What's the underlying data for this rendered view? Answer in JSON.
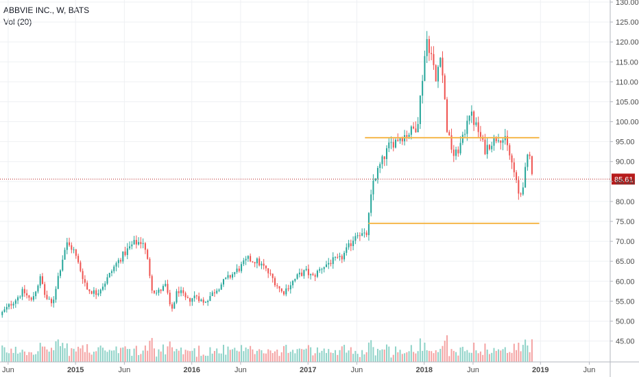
{
  "legend": {
    "symbol": "ABBVIE INC., W, BATS",
    "volume": "Vol (20)"
  },
  "colors": {
    "up": "#26a69a",
    "down": "#ef5350",
    "vol_up": "#8fd3c8",
    "vol_down": "#f4a3a3",
    "level_line": "#f5b74a",
    "last_price": "#b71c1c",
    "grid": "#eef0f3"
  },
  "chart_data": {
    "type": "candlestick",
    "title": "ABBVIE INC., W, BATS",
    "interval": "weekly",
    "exchange": "BATS",
    "last_price": "85.61",
    "y_ticks": [
      "45.00",
      "50.00",
      "55.00",
      "60.00",
      "65.00",
      "70.00",
      "75.00",
      "80.00",
      "85.00",
      "90.00",
      "95.00",
      "100.00",
      "105.00",
      "110.00",
      "115.00",
      "120.00",
      "125.00",
      "130.00"
    ],
    "ylim": [
      42,
      130
    ],
    "x_ticks": [
      {
        "label": "Jun",
        "bold": false
      },
      {
        "label": "2015",
        "bold": true
      },
      {
        "label": "Jun",
        "bold": false
      },
      {
        "label": "2016",
        "bold": true
      },
      {
        "label": "Jun",
        "bold": false
      },
      {
        "label": "2017",
        "bold": true
      },
      {
        "label": "Jun",
        "bold": false
      },
      {
        "label": "2018",
        "bold": true
      },
      {
        "label": "Jun",
        "bold": false
      },
      {
        "label": "2019",
        "bold": true
      },
      {
        "label": "Jun",
        "bold": false
      }
    ],
    "x_range_years": [
      2014.35,
      2019.6
    ],
    "x_tick_years": [
      2014.42,
      2015.0,
      2015.42,
      2016.0,
      2016.42,
      2017.0,
      2017.42,
      2018.0,
      2018.42,
      2019.0,
      2019.42
    ],
    "price_path": [
      [
        2014.35,
        51.5
      ],
      [
        2014.55,
        57.5
      ],
      [
        2014.62,
        55.0
      ],
      [
        2014.7,
        61.0
      ],
      [
        2014.74,
        56.0
      ],
      [
        2014.8,
        54.0
      ],
      [
        2014.84,
        60.0
      ],
      [
        2014.92,
        69.5
      ],
      [
        2014.98,
        68.0
      ],
      [
        2015.04,
        63.0
      ],
      [
        2015.1,
        58.0
      ],
      [
        2015.18,
        57.0
      ],
      [
        2015.26,
        60.0
      ],
      [
        2015.34,
        64.0
      ],
      [
        2015.42,
        67.0
      ],
      [
        2015.5,
        69.5
      ],
      [
        2015.58,
        70.0
      ],
      [
        2015.62,
        65.0
      ],
      [
        2015.66,
        58.0
      ],
      [
        2015.7,
        57.0
      ],
      [
        2015.78,
        59.0
      ],
      [
        2015.82,
        52.0
      ],
      [
        2015.88,
        58.0
      ],
      [
        2015.96,
        55.0
      ],
      [
        2016.04,
        56.5
      ],
      [
        2016.1,
        54.5
      ],
      [
        2016.18,
        57.0
      ],
      [
        2016.26,
        59.5
      ],
      [
        2016.34,
        61.5
      ],
      [
        2016.42,
        63.5
      ],
      [
        2016.48,
        65.5
      ],
      [
        2016.56,
        65.0
      ],
      [
        2016.62,
        63.5
      ],
      [
        2016.7,
        60.5
      ],
      [
        2016.78,
        57.0
      ],
      [
        2016.84,
        59.0
      ],
      [
        2016.92,
        61.5
      ],
      [
        2016.98,
        62.5
      ],
      [
        2017.04,
        61.0
      ],
      [
        2017.12,
        63.5
      ],
      [
        2017.2,
        65.0
      ],
      [
        2017.28,
        65.5
      ],
      [
        2017.36,
        69.0
      ],
      [
        2017.42,
        72.5
      ],
      [
        2017.5,
        71.0
      ],
      [
        2017.56,
        85.0
      ],
      [
        2017.62,
        89.0
      ],
      [
        2017.7,
        94.0
      ],
      [
        2017.78,
        96.0
      ],
      [
        2017.86,
        97.0
      ],
      [
        2017.94,
        99.0
      ],
      [
        2018.02,
        121.0
      ],
      [
        2018.06,
        117.0
      ],
      [
        2018.1,
        110.0
      ],
      [
        2018.14,
        118.0
      ],
      [
        2018.2,
        97.0
      ],
      [
        2018.26,
        91.0
      ],
      [
        2018.34,
        96.0
      ],
      [
        2018.38,
        103.0
      ],
      [
        2018.46,
        98.0
      ],
      [
        2018.52,
        93.0
      ],
      [
        2018.58,
        95.0
      ],
      [
        2018.64,
        96.5
      ],
      [
        2018.7,
        95.0
      ],
      [
        2018.76,
        89.0
      ],
      [
        2018.82,
        80.5
      ],
      [
        2018.86,
        86.0
      ],
      [
        2018.9,
        92.5
      ],
      [
        2018.94,
        85.61
      ]
    ],
    "volume_scale_max": 1.0,
    "levels": [
      {
        "from": 2017.49,
        "to": 2018.99,
        "value": 96.0
      },
      {
        "from": 2017.52,
        "to": 2018.99,
        "value": 74.5
      }
    ]
  }
}
